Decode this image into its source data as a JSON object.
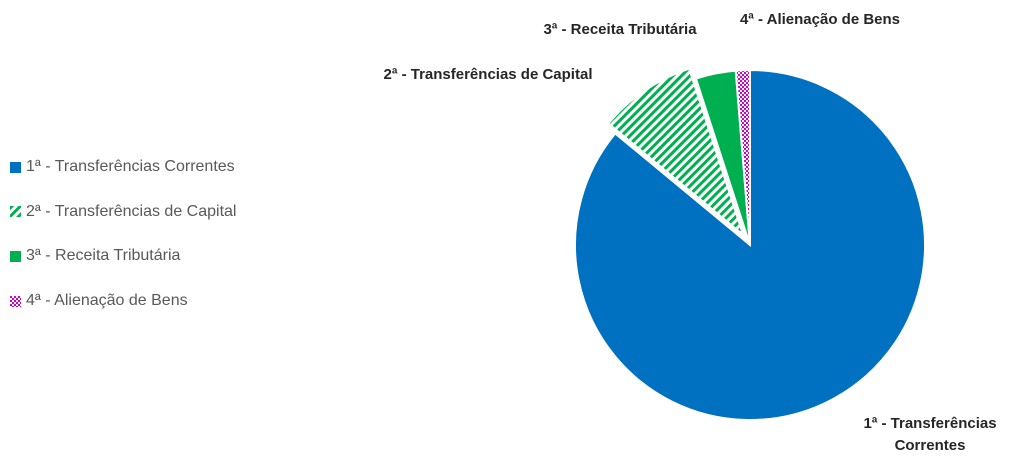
{
  "chart_data": {
    "type": "pie",
    "categories": [
      "1ª - Transferências Correntes",
      "2ª - Transferências de Capital",
      "3ª - Receita Tributária",
      "4ª - Alienação de Bens"
    ],
    "values": [
      86,
      9,
      3.7,
      1.3
    ],
    "colors": [
      "#0070c0",
      "#00b050",
      "#00b050",
      "#cc00cc"
    ],
    "patterns": [
      "solid",
      "diagonal",
      "solid",
      "checker"
    ],
    "exploded": [
      false,
      true,
      false,
      false
    ],
    "legend": "left"
  }
}
